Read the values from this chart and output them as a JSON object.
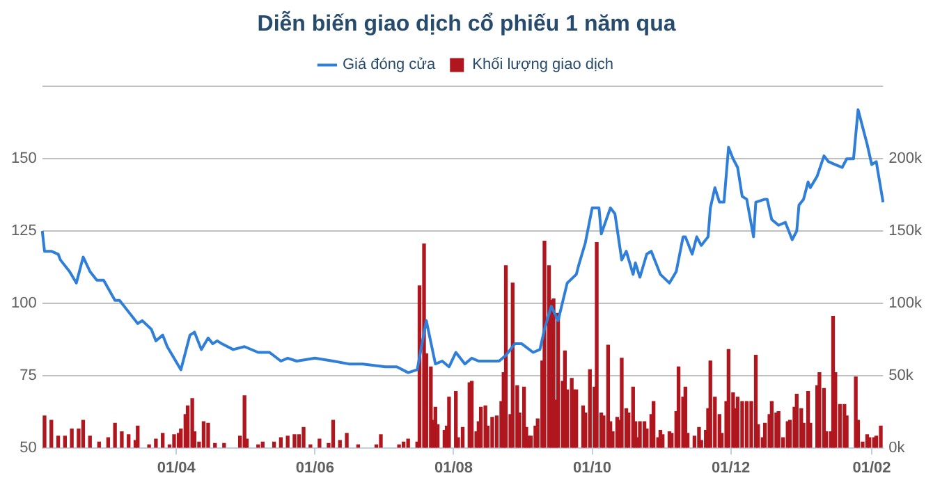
{
  "chart_data": {
    "type": "line",
    "title": "Diễn biến giao dịch cổ phiếu 1 năm qua",
    "legend": "top",
    "grid": "y",
    "categories": [
      null,
      null,
      null,
      null,
      null,
      null,
      null,
      null,
      null,
      null,
      null,
      null,
      null,
      null,
      null,
      null,
      null,
      null,
      null,
      null,
      null,
      null,
      null,
      null,
      null,
      null,
      null,
      null,
      null,
      null,
      null,
      null,
      null,
      null,
      null,
      null,
      null,
      null,
      null,
      null,
      null,
      null,
      null,
      null,
      null,
      null,
      null,
      null,
      null,
      null,
      null,
      null,
      null,
      null,
      null,
      null,
      null,
      null,
      null,
      "01/04",
      null,
      null,
      null,
      null,
      null,
      null,
      null,
      null,
      null,
      null,
      null,
      null,
      null,
      null,
      null,
      null,
      null,
      null,
      null,
      null,
      null,
      null,
      null,
      null,
      null,
      null,
      null,
      null,
      null,
      null,
      null,
      null,
      null,
      null,
      null,
      null,
      null,
      null,
      null,
      null,
      null,
      null,
      null,
      null,
      null,
      null,
      null,
      null,
      null,
      null,
      null,
      null,
      null,
      null,
      null,
      null,
      null,
      null,
      null,
      null,
      "01/06",
      null,
      null,
      null,
      null,
      null,
      null,
      null,
      null,
      null,
      null,
      null,
      null,
      null,
      null,
      null,
      null,
      null,
      null,
      null,
      null,
      null,
      null,
      null,
      null,
      null,
      null,
      null,
      null,
      null,
      null,
      null,
      null,
      null,
      null,
      null,
      null,
      null,
      null,
      null,
      null,
      null,
      null,
      null,
      null,
      null,
      null,
      null,
      null,
      null,
      null,
      null,
      null,
      null,
      null,
      null,
      null,
      null,
      null,
      null,
      null,
      "01/08",
      null,
      null,
      null,
      null,
      null,
      null,
      null,
      null,
      null,
      null,
      null,
      null,
      null,
      null,
      null,
      null,
      null,
      null,
      null,
      null,
      null,
      null,
      null,
      null,
      null,
      null,
      null,
      null,
      null,
      null,
      null,
      null,
      null,
      null,
      null,
      null,
      null,
      null,
      null,
      null,
      null,
      null,
      null,
      null,
      null,
      null,
      null,
      null,
      null,
      null,
      null,
      null,
      null,
      null,
      null,
      null,
      null,
      null,
      null,
      null,
      "01/10",
      null,
      null,
      null,
      null,
      null,
      null,
      null,
      null,
      null,
      null,
      null,
      null,
      null,
      null,
      null,
      null,
      null,
      null,
      null,
      null,
      null,
      null,
      null,
      null,
      null,
      null,
      null,
      null,
      null,
      null,
      null,
      null,
      null,
      null,
      null,
      null,
      null,
      null,
      null,
      null,
      null,
      null,
      null,
      null,
      null,
      null,
      null,
      null,
      null,
      null,
      null,
      null,
      null,
      null,
      null,
      null,
      null,
      null,
      null,
      null,
      "01/12",
      null,
      null,
      null,
      null,
      null,
      null,
      null,
      null,
      null,
      null,
      null,
      null,
      null,
      null,
      null,
      null,
      null,
      null,
      null,
      null,
      null,
      null,
      null,
      null,
      null,
      null,
      null,
      null,
      null,
      null,
      null,
      null,
      null,
      null,
      null,
      null,
      null,
      null,
      null,
      null,
      null,
      null,
      null,
      null,
      null,
      null,
      null,
      null,
      null,
      null,
      null,
      null,
      null,
      null,
      null,
      null,
      null,
      null,
      null,
      null,
      null,
      "01/02",
      null,
      null,
      null,
      null,
      null
    ],
    "ylim": [
      50,
      175
    ],
    "yticks": [
      50,
      75,
      100,
      125,
      150,
      {
        "value": 175,
        "label": null
      }
    ],
    "y2lim": [
      0,
      250000
    ],
    "y2ticks": [
      {
        "value": 0,
        "label": "0k"
      },
      {
        "value": 50000,
        "label": "50k"
      },
      {
        "value": 100000,
        "label": "100k"
      },
      {
        "value": 150000,
        "label": "150k"
      },
      {
        "value": 200000,
        "label": "200k"
      },
      {
        "value": 250000,
        "label": null
      }
    ],
    "series": [
      {
        "name": "Giá đóng cửa",
        "color": "#2f7ed8",
        "values": [
          125,
          118,
          null,
          null,
          118,
          null,
          null,
          117,
          115,
          null,
          null,
          null,
          111,
          null,
          null,
          107,
          null,
          null,
          116,
          null,
          null,
          111,
          null,
          null,
          108,
          null,
          null,
          108,
          null,
          null,
          null,
          null,
          101,
          null,
          101,
          null,
          null,
          null,
          97,
          null,
          null,
          null,
          93,
          null,
          94,
          null,
          null,
          null,
          91,
          null,
          87,
          null,
          null,
          89,
          null,
          85,
          null,
          null,
          null,
          null,
          null,
          77,
          null,
          null,
          null,
          89,
          null,
          90,
          null,
          null,
          84,
          null,
          null,
          88,
          null,
          86,
          null,
          87,
          null,
          86,
          null,
          null,
          null,
          null,
          84,
          null,
          null,
          null,
          null,
          85,
          null,
          null,
          null,
          null,
          null,
          83,
          null,
          null,
          null,
          null,
          83,
          null,
          null,
          null,
          null,
          80,
          null,
          null,
          81,
          null,
          null,
          null,
          80,
          null,
          null,
          null,
          null,
          null,
          null,
          null,
          81,
          null,
          null,
          null,
          null,
          null,
          null,
          null,
          80,
          null,
          null,
          null,
          null,
          null,
          null,
          79,
          null,
          null,
          null,
          null,
          null,
          79,
          null,
          null,
          null,
          null,
          null,
          null,
          null,
          null,
          null,
          78,
          null,
          null,
          null,
          null,
          78,
          null,
          null,
          null,
          null,
          76,
          null,
          null,
          null,
          77,
          null,
          null,
          null,
          94,
          null,
          null,
          null,
          79,
          null,
          null,
          80,
          null,
          null,
          78,
          null,
          null,
          83,
          null,
          null,
          null,
          79,
          null,
          null,
          81,
          null,
          null,
          80,
          null,
          null,
          null,
          null,
          80,
          null,
          null,
          null,
          80,
          null,
          null,
          82,
          null,
          null,
          null,
          86,
          null,
          null,
          86,
          null,
          null,
          null,
          null,
          83,
          null,
          null,
          84,
          null,
          91,
          null,
          null,
          99,
          null,
          null,
          94,
          null,
          null,
          null,
          107,
          null,
          null,
          null,
          110,
          113,
          null,
          null,
          121,
          null,
          null,
          133,
          null,
          null,
          133,
          124,
          null,
          null,
          null,
          133,
          null,
          131,
          null,
          null,
          115,
          null,
          118,
          null,
          null,
          110,
          114,
          null,
          109,
          null,
          null,
          117,
          null,
          118,
          null,
          null,
          null,
          110,
          null,
          null,
          null,
          107,
          null,
          null,
          111,
          null,
          null,
          123,
          123,
          null,
          null,
          117,
          null,
          123,
          null,
          120,
          null,
          null,
          123,
          133,
          null,
          140,
          null,
          135,
          null,
          135,
          null,
          154,
          null,
          150,
          null,
          147,
          null,
          137,
          null,
          136,
          null,
          null,
          123,
          135,
          null,
          null,
          null,
          136,
          136,
          null,
          129,
          null,
          null,
          127,
          null,
          null,
          128,
          null,
          null,
          122,
          null,
          125,
          134,
          null,
          136,
          null,
          142,
          140,
          null,
          null,
          144,
          null,
          null,
          151,
          null,
          149,
          null,
          null,
          148,
          null,
          null,
          147,
          null,
          150,
          null,
          null,
          150,
          null,
          167,
          null,
          null,
          null,
          155,
          null,
          148,
          null,
          149,
          null,
          null,
          135
        ]
      },
      {
        "name": "Khối lượng giao dịch",
        "type": "bar",
        "axis": "y2",
        "color": "#b0161e",
        "values": [
          null,
          22000,
          null,
          null,
          19000,
          null,
          null,
          8000,
          null,
          null,
          8000,
          null,
          null,
          13000,
          null,
          null,
          13000,
          null,
          19000,
          null,
          null,
          8000,
          null,
          null,
          null,
          4000,
          null,
          null,
          null,
          7000,
          null,
          null,
          17000,
          null,
          null,
          11000,
          null,
          null,
          9000,
          null,
          null,
          5000,
          15000,
          null,
          null,
          null,
          null,
          2000,
          null,
          null,
          6000,
          null,
          null,
          10000,
          null,
          null,
          2000,
          null,
          9000,
          null,
          10000,
          13000,
          null,
          23000,
          29000,
          null,
          34000,
          11000,
          null,
          4000,
          null,
          18000,
          null,
          17000,
          null,
          null,
          3000,
          null,
          null,
          null,
          3000,
          null,
          null,
          null,
          null,
          null,
          null,
          8000,
          null,
          36000,
          6000,
          null,
          null,
          null,
          null,
          2000,
          null,
          4000,
          null,
          null,
          null,
          null,
          4000,
          null,
          null,
          7000,
          null,
          null,
          8000,
          null,
          null,
          9000,
          null,
          9000,
          null,
          14000,
          null,
          null,
          2000,
          null,
          null,
          null,
          6000,
          null,
          null,
          null,
          3000,
          null,
          19000,
          null,
          null,
          5000,
          null,
          null,
          10000,
          null,
          null,
          null,
          null,
          2000,
          null,
          null,
          null,
          null,
          null,
          null,
          null,
          2000,
          null,
          9000,
          null,
          null,
          null,
          null,
          null,
          null,
          null,
          2000,
          null,
          4000,
          null,
          6000,
          null,
          null,
          null,
          4000,
          112000,
          null,
          141000,
          65000,
          null,
          56000,
          19000,
          28000,
          16000,
          null,
          null,
          12000,
          15000,
          35000,
          null,
          null,
          39000,
          7000,
          null,
          14000,
          null,
          null,
          45000,
          46000,
          null,
          11000,
          18000,
          28000,
          null,
          29000,
          15000,
          null,
          21000,
          null,
          22000,
          null,
          32000,
          52000,
          126000,
          null,
          23000,
          114000,
          null,
          43000,
          24000,
          null,
          42000,
          14000,
          8000,
          8000,
          null,
          15000,
          20000,
          null,
          60000,
          143000,
          null,
          126000,
          102000,
          103000,
          33000,
          93000,
          null,
          46000,
          67000,
          40000,
          null,
          48000,
          40000,
          40000,
          null,
          null,
          29000,
          24000,
          null,
          54000,
          null,
          42000,
          142000,
          null,
          24000,
          22000,
          null,
          71000,
          18000,
          11000,
          null,
          21000,
          19000,
          62000,
          null,
          27000,
          24000,
          null,
          42000,
          18000,
          7000,
          18000,
          null,
          18000,
          13000,
          null,
          23000,
          32000,
          null,
          7000,
          12000,
          9000,
          null,
          null,
          11000,
          10000,
          null,
          25000,
          56000,
          null,
          35000,
          42000,
          10000,
          null,
          null,
          8000,
          null,
          14000,
          5000,
          null,
          12000,
          27000,
          60000,
          null,
          35000,
          null,
          23000,
          10000,
          null,
          32000,
          68000,
          null,
          38000,
          27000,
          35000,
          null,
          32000,
          null,
          32000,
          null,
          32000,
          null,
          64000,
          16000,
          null,
          7000,
          17000,
          null,
          23000,
          32000,
          null,
          24000,
          25000,
          null,
          7000,
          null,
          18000,
          19000,
          null,
          28000,
          37000,
          null,
          27000,
          17000,
          null,
          39000,
          17000,
          null,
          null,
          43000,
          52000,
          null,
          41000,
          11000,
          null,
          11000,
          91000,
          52000,
          null,
          30000,
          null,
          30000,
          22000,
          null,
          null,
          null,
          49000,
          19000,
          null,
          4000,
          null,
          9000,
          7000,
          null,
          7000,
          8000,
          null,
          15000,
          null
        ]
      }
    ]
  }
}
